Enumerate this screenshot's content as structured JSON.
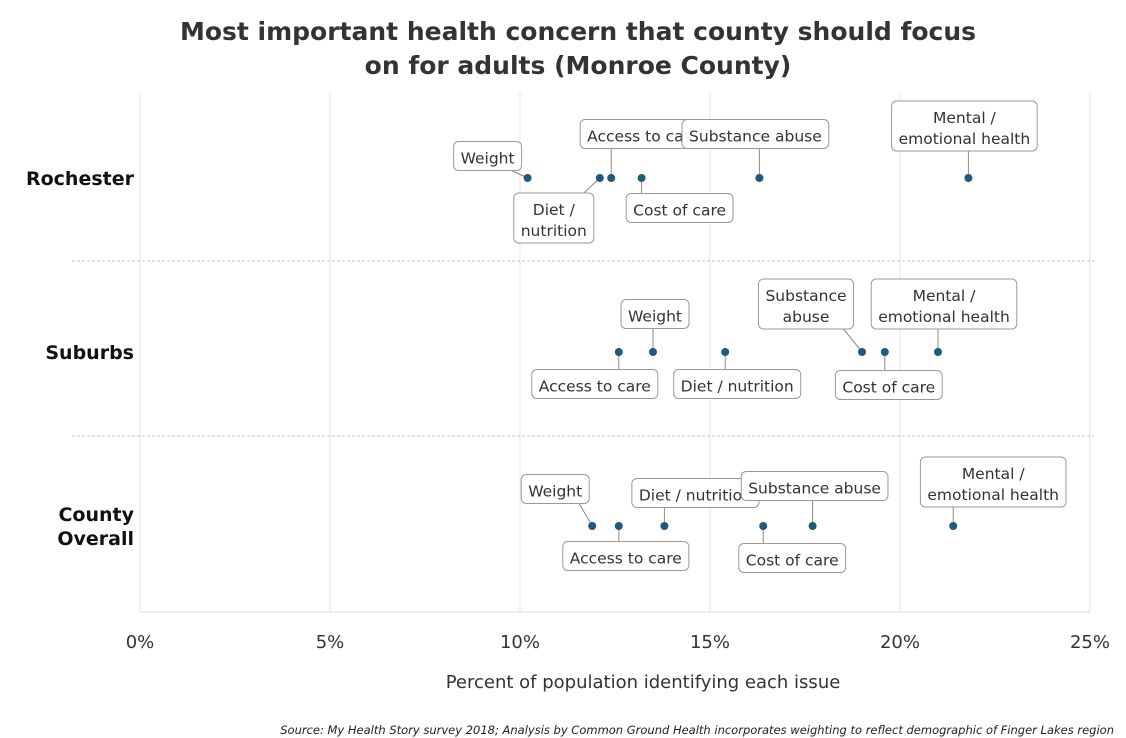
{
  "chart_data": {
    "type": "scatter",
    "title_lines": [
      "Most important health concern that county should focus",
      "on for adults (Monroe County)"
    ],
    "xlabel": "Percent of population identifying each issue",
    "xlim": [
      0,
      25
    ],
    "x_ticks": [
      0,
      5,
      10,
      15,
      20,
      25
    ],
    "x_tick_labels": [
      "0%",
      "5%",
      "10%",
      "15%",
      "20%",
      "25%"
    ],
    "gridlines": "vertical",
    "source": "Source: My Health Story survey 2018; Analysis by Common Ground Health incorporates weighting to reflect demographic of Finger Lakes region",
    "colors": {
      "point": "#1f5a7a",
      "gridline": "#e6e6e6",
      "callout_border": "#9a9a9a"
    },
    "rows": [
      {
        "lines": [
          "Rochester"
        ],
        "points": [
          {
            "label": [
              "Weight"
            ],
            "x": 10.2
          },
          {
            "label": [
              "Diet /",
              "nutrition"
            ],
            "x": 12.1
          },
          {
            "label": [
              "Access to care"
            ],
            "x": 12.4
          },
          {
            "label": [
              "Cost of care"
            ],
            "x": 13.2
          },
          {
            "label": [
              "Substance abuse"
            ],
            "x": 16.3
          },
          {
            "label": [
              "Mental /",
              "emotional health"
            ],
            "x": 21.8
          }
        ]
      },
      {
        "lines": [
          "Suburbs"
        ],
        "points": [
          {
            "label": [
              "Access to care"
            ],
            "x": 12.6
          },
          {
            "label": [
              "Weight"
            ],
            "x": 13.5
          },
          {
            "label": [
              "Diet / nutrition"
            ],
            "x": 15.4
          },
          {
            "label": [
              "Substance",
              "abuse"
            ],
            "x": 19.0
          },
          {
            "label": [
              "Cost of care"
            ],
            "x": 19.6
          },
          {
            "label": [
              "Mental /",
              "emotional health"
            ],
            "x": 21.0
          }
        ]
      },
      {
        "lines": [
          "County",
          "Overall"
        ],
        "points": [
          {
            "label": [
              "Weight"
            ],
            "x": 11.9
          },
          {
            "label": [
              "Access to care"
            ],
            "x": 12.6
          },
          {
            "label": [
              "Diet / nutrition"
            ],
            "x": 13.8
          },
          {
            "label": [
              "Cost of care"
            ],
            "x": 16.4
          },
          {
            "label": [
              "Substance abuse"
            ],
            "x": 17.7
          },
          {
            "label": [
              "Mental /",
              "emotional health"
            ],
            "x": 21.4
          }
        ]
      }
    ]
  }
}
